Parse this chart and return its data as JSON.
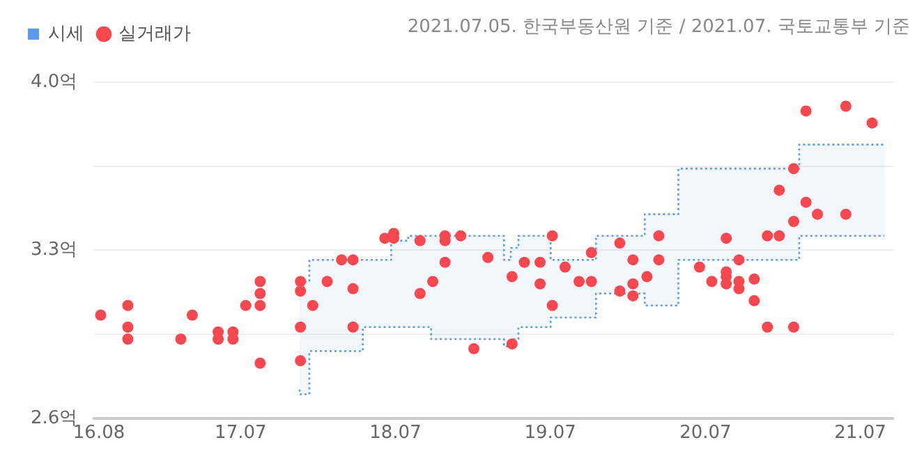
{
  "chart_data": {
    "type": "scatter",
    "annotations": [
      "2021.07.05. 한국부동산원 기준 / 2021.07. 국토교통부 기준"
    ],
    "legend": "top left",
    "grid": "y",
    "line_style": "dotted",
    "xlim": [
      "2016-07-21",
      "2021-09-17"
    ],
    "xticks": [
      {
        "value": "2016-08",
        "label": "16.08"
      },
      {
        "value": "2017-07",
        "label": "17.07"
      },
      {
        "value": "2018-07",
        "label": "18.07"
      },
      {
        "value": "2019-07",
        "label": "19.07"
      },
      {
        "value": "2020-07",
        "label": "20.07"
      },
      {
        "value": "2021-07",
        "label": "21.07"
      }
    ],
    "ylim": [
      2.6,
      4.0
    ],
    "yticks": [
      {
        "value": 2.6,
        "label": "2.6억"
      },
      {
        "value": 2.95,
        "label": null
      },
      {
        "value": 3.3,
        "label": "3.3억"
      },
      {
        "value": 3.65,
        "label": null
      },
      {
        "value": 4.0,
        "label": "4.0억"
      }
    ],
    "series": [
      {
        "name": "시세",
        "type": "step",
        "marker": "none",
        "color": "#5b9bef",
        "x": [
          "2017-11-17",
          "2017-12-10",
          "2018-04-15",
          "2018-06-21",
          "2018-07-31",
          "2018-09-23",
          "2019-03-14",
          "2019-03-30",
          "2019-04-17",
          "2019-07-02",
          "2019-10-17",
          "2020-02-09",
          "2020-04-28",
          "2021-02-07",
          "2021-05-02",
          "2021-08-27"
        ],
        "values": [
          3.17,
          3.17,
          3.26,
          3.26,
          3.34,
          3.36,
          3.36,
          3.26,
          3.31,
          3.36,
          3.26,
          3.36,
          3.45,
          3.64,
          3.74,
          3.74
        ],
        "upper": [
          3.17,
          3.17,
          3.26,
          3.26,
          3.34,
          3.36,
          3.36,
          3.26,
          3.31,
          3.36,
          3.26,
          3.36,
          3.45,
          3.64,
          3.74,
          3.74
        ],
        "lower": [
          2.72,
          2.7,
          2.88,
          2.98,
          2.98,
          2.98,
          2.93,
          2.9,
          2.93,
          2.98,
          3.02,
          3.12,
          3.07,
          3.26,
          3.36,
          3.36
        ]
      },
      {
        "type": "step",
        "marker": "none",
        "color": "#5b9bef",
        "x": [
          "2017-11-17",
          "2017-12-10",
          "2018-04-15",
          "2018-06-21",
          "2018-07-31",
          "2018-09-23",
          "2019-03-14",
          "2019-03-30",
          "2019-04-17",
          "2019-07-02",
          "2019-10-17",
          "2020-02-09",
          "2020-04-28",
          "2021-02-07",
          "2021-05-02",
          "2021-08-27"
        ],
        "values": [
          2.72,
          2.7,
          2.88,
          2.98,
          2.98,
          2.98,
          2.93,
          2.9,
          2.93,
          2.98,
          3.02,
          3.12,
          3.07,
          3.26,
          3.36,
          3.36
        ]
      },
      {
        "name": "실거래가",
        "marker": "circle",
        "color": "#f7474f",
        "x": [
          "2016-08-05",
          "2016-10-08",
          "2016-10-08",
          "2016-10-08",
          "2017-02-10",
          "2017-03-09",
          "2017-05-09",
          "2017-05-09",
          "2017-06-13",
          "2017-06-13",
          "2017-07-13",
          "2017-08-16",
          "2017-08-16",
          "2017-08-16",
          "2017-08-16",
          "2017-11-19",
          "2017-11-19",
          "2017-11-19",
          "2017-11-19",
          "2017-12-18",
          "2018-01-21",
          "2018-02-24",
          "2018-03-23",
          "2018-03-23",
          "2018-03-23",
          "2018-06-06",
          "2018-06-27",
          "2018-06-27",
          "2018-08-28",
          "2018-08-28",
          "2018-09-27",
          "2018-10-26",
          "2018-10-26",
          "2018-10-26",
          "2018-12-02",
          "2019-01-02",
          "2019-02-04",
          "2019-04-02",
          "2019-04-02",
          "2019-05-01",
          "2019-06-07",
          "2019-06-07",
          "2019-07-06",
          "2019-07-06",
          "2019-08-05",
          "2019-09-07",
          "2019-10-06",
          "2019-10-06",
          "2019-12-12",
          "2019-12-12",
          "2020-01-12",
          "2020-01-12",
          "2020-01-12",
          "2020-02-14",
          "2020-03-13",
          "2020-03-13",
          "2020-06-17",
          "2020-07-16",
          "2020-08-19",
          "2020-08-19",
          "2020-08-19",
          "2020-08-19",
          "2020-09-18",
          "2020-09-18",
          "2020-09-18",
          "2020-10-24",
          "2020-10-24",
          "2020-11-24",
          "2020-11-24",
          "2020-12-22",
          "2020-12-22",
          "2021-01-25",
          "2021-01-25",
          "2021-01-25",
          "2021-02-23",
          "2021-02-23",
          "2021-03-22",
          "2021-05-28",
          "2021-05-28",
          "2021-07-29"
        ],
        "values": [
          3.03,
          3.07,
          2.98,
          2.93,
          2.93,
          3.03,
          2.96,
          2.93,
          2.96,
          2.93,
          3.07,
          3.17,
          3.12,
          3.07,
          2.83,
          3.17,
          3.13,
          2.98,
          2.84,
          3.07,
          3.17,
          3.26,
          3.26,
          3.14,
          2.98,
          3.35,
          3.37,
          3.35,
          3.34,
          3.12,
          3.17,
          3.36,
          3.34,
          3.25,
          3.36,
          2.89,
          3.27,
          3.19,
          2.91,
          3.25,
          3.25,
          3.16,
          3.36,
          3.07,
          3.23,
          3.17,
          3.29,
          3.17,
          3.33,
          3.13,
          3.26,
          3.16,
          3.11,
          3.19,
          3.36,
          3.26,
          3.23,
          3.17,
          3.35,
          3.21,
          3.19,
          3.16,
          3.26,
          3.17,
          3.14,
          3.18,
          3.09,
          3.36,
          2.98,
          3.55,
          3.36,
          3.64,
          3.42,
          2.98,
          3.88,
          3.5,
          3.45,
          3.9,
          3.45,
          3.83
        ]
      }
    ]
  }
}
